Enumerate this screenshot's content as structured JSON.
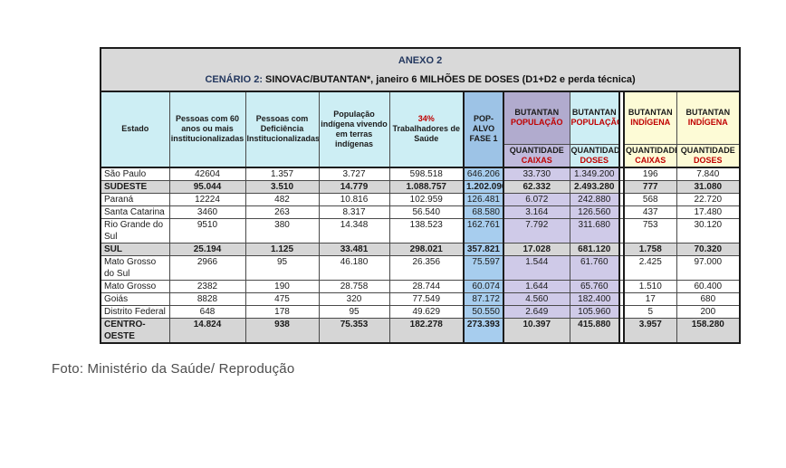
{
  "title": {
    "anexo": "ANEXO 2",
    "cenario_label": "CENÁRIO 2:",
    "cenario_text": " SINOVAC/BUTANTAN*, janeiro 6 MILHÕES DE DOSES (D1+D2 e perda técnica)"
  },
  "header": {
    "estado": "Estado",
    "pessoas_60": "Pessoas com 60 anos ou mais institucionalizadas",
    "pessoas_def": "Pessoas com Deficiência Institucionalizadas",
    "pop_indigena": "População indígena vivendo em terras indígenas",
    "trab_pct": "34%",
    "trab_saude": "Trabalhadores de Saúde",
    "pop_alvo": "POP-ALVO FASE 1",
    "butantan": "BUTANTAN",
    "populacao": "POPULAÇÃO",
    "indigena": "INDÍGENA",
    "quantidade": "QUANTIDADE",
    "caixas": "CAIXAS",
    "doses": "DOSES"
  },
  "rows": [
    {
      "type": "state",
      "cells": [
        "São Paulo",
        "42604",
        "1.357",
        "3.727",
        "598.518",
        "646.206",
        "33.730",
        "1.349.200",
        "196",
        "7.840"
      ]
    },
    {
      "type": "total",
      "cells": [
        "SUDESTE",
        "95.044",
        "3.510",
        "14.779",
        "1.088.757",
        "1.202.090",
        "62.332",
        "2.493.280",
        "777",
        "31.080"
      ]
    },
    {
      "type": "state",
      "cells": [
        "Paraná",
        "12224",
        "482",
        "10.816",
        "102.959",
        "126.481",
        "6.072",
        "242.880",
        "568",
        "22.720"
      ]
    },
    {
      "type": "state",
      "cells": [
        "Santa Catarina",
        "3460",
        "263",
        "8.317",
        "56.540",
        "68.580",
        "3.164",
        "126.560",
        "437",
        "17.480"
      ]
    },
    {
      "type": "state",
      "cells": [
        "Rio Grande do Sul",
        "9510",
        "380",
        "14.348",
        "138.523",
        "162.761",
        "7.792",
        "311.680",
        "753",
        "30.120"
      ]
    },
    {
      "type": "total",
      "cells": [
        "SUL",
        "25.194",
        "1.125",
        "33.481",
        "298.021",
        "357.821",
        "17.028",
        "681.120",
        "1.758",
        "70.320"
      ]
    },
    {
      "type": "state",
      "cells": [
        "Mato Grosso do Sul",
        "2966",
        "95",
        "46.180",
        "26.356",
        "75.597",
        "1.544",
        "61.760",
        "2.425",
        "97.000"
      ]
    },
    {
      "type": "state",
      "cells": [
        "Mato Grosso",
        "2382",
        "190",
        "28.758",
        "28.744",
        "60.074",
        "1.644",
        "65.760",
        "1.510",
        "60.400"
      ]
    },
    {
      "type": "state",
      "cells": [
        "Goiás",
        "8828",
        "475",
        "320",
        "77.549",
        "87.172",
        "4.560",
        "182.400",
        "17",
        "680"
      ]
    },
    {
      "type": "state",
      "cells": [
        "Distrito Federal",
        "648",
        "178",
        "95",
        "49.629",
        "50.550",
        "2.649",
        "105.960",
        "5",
        "200"
      ]
    },
    {
      "type": "total",
      "cells": [
        "CENTRO-OESTE",
        "14.824",
        "938",
        "75.353",
        "182.278",
        "273.393",
        "10.397",
        "415.880",
        "3.957",
        "158.280"
      ]
    }
  ],
  "caption": "Foto: Ministério da Saúde/ Reprodução",
  "colors": {
    "red": "#c00000",
    "navy": "#24385f",
    "cyan": "#cdeef4",
    "lavender": "#b1abce",
    "lavsub": "#c0badc",
    "lavlight": "#cfcae8",
    "yellow": "#fdfbd6",
    "blue_header": "#9dc3e6",
    "blue": "#a7cdee",
    "gray": "#d6d6d6",
    "title_gray": "#d9d9d9"
  }
}
